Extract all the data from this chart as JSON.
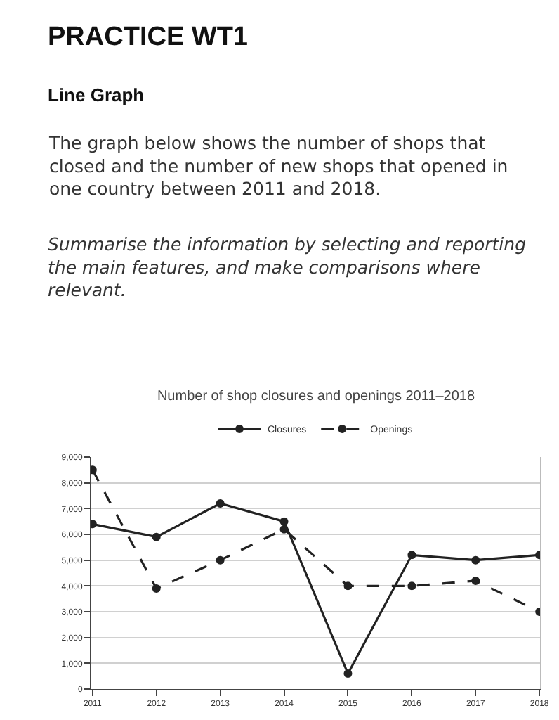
{
  "chart_data": {
    "type": "line",
    "title": "Number of shop closures and openings 2011–2018",
    "annotations": [
      "PRACTICE WT1",
      "Line Graph",
      "The graph below shows the number of shops that closed and the number of new shops that opened in one country between 2011 and 2018.",
      "Summarise the information by selecting and reporting the main features, and make comparisons where relevant."
    ],
    "categories": [
      "2011",
      "2012",
      "2013",
      "2014",
      "2015",
      "2016",
      "2017",
      "2018"
    ],
    "series": [
      {
        "name": "Closures",
        "color": "#222222",
        "line_style": "solid",
        "values": [
          6400,
          5900,
          7200,
          6500,
          600,
          5200,
          5000,
          5200
        ]
      },
      {
        "name": "Openings",
        "color": "#222222",
        "line_style": "dashed",
        "values": [
          8500,
          3900,
          5000,
          6200,
          4000,
          4000,
          4200,
          3000
        ]
      }
    ],
    "ylim": [
      0,
      9000
    ],
    "yticks": [
      0,
      {
        "value": 1000,
        "label": "1,000"
      },
      {
        "value": 2000,
        "label": "2,000"
      },
      {
        "value": 3000,
        "label": "3,000"
      },
      {
        "value": 4000,
        "label": "4,000"
      },
      {
        "value": 5000,
        "label": "5,000"
      },
      {
        "value": 6000,
        "label": "6,000"
      },
      {
        "value": 7000,
        "label": "7,000"
      },
      {
        "value": 8000,
        "label": "8,000"
      },
      {
        "value": 9000,
        "label": "9,000"
      }
    ],
    "grid": "y",
    "legend": "top",
    "marker": "circle"
  }
}
